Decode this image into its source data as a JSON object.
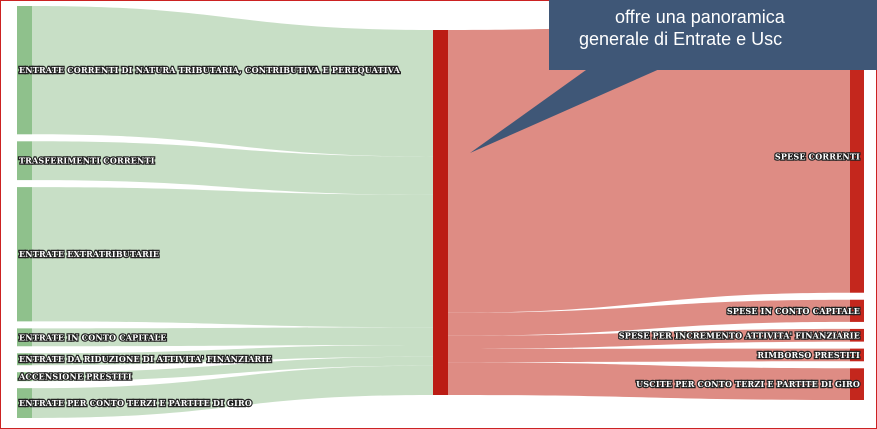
{
  "chart_data": {
    "type": "sankey",
    "hub": "",
    "sources": [
      {
        "label": "ENTRATE CORRENTI DI NATURA TRIBUTARIA, CONTRIBUTIVA E PEREQUATIVA",
        "value": 21.5
      },
      {
        "label": "TRASFERIMENTI CORRENTI",
        "value": 6.5
      },
      {
        "label": "ENTRATE EXTRATRIBUTARIE",
        "value": 22.5
      },
      {
        "label": "ENTRATE IN CONTO CAPITALE",
        "value": 3.0
      },
      {
        "label": "ENTRATE DA RIDUZIONE DI ATTIVITA' FINANZIARIE",
        "value": 2.0
      },
      {
        "label": "ACCENSIONE PRESTITI",
        "value": 1.5
      },
      {
        "label": "ENTRATE PER CONTO TERZI E PARTITE DI GIRO",
        "value": 5.0
      }
    ],
    "targets": [
      {
        "label": "SPESE CORRENTI",
        "value": 43.0
      },
      {
        "label": "SPESE IN CONTO CAPITALE",
        "value": 3.5
      },
      {
        "label": "SPESE PER INCREMENTO ATTIVITA' FINANZIARIE",
        "value": 2.0
      },
      {
        "label": "RIMBORSO PRESTITI",
        "value": 2.0
      },
      {
        "label": "USCITE PER CONTO TERZI E PARTITE DI GIRO",
        "value": 5.0
      }
    ],
    "colors": {
      "sources": "#8fc18c",
      "links_in": "#c8dfc6",
      "hub": "#bb1c14",
      "links_out": "#de8c84",
      "targets": "#c4271d"
    }
  },
  "callout": {
    "lines": [
      "offre una panoramica",
      "generale di Entrate e Usc"
    ],
    "color": "#3f5777"
  }
}
